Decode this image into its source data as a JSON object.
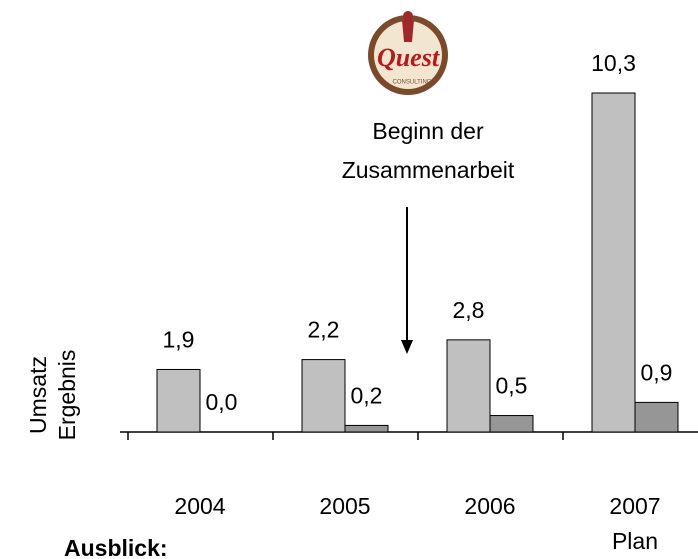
{
  "chart_data": {
    "type": "bar",
    "categories": [
      "2004",
      "2005",
      "2006",
      "2007 Plan"
    ],
    "series": [
      {
        "name": "Umsatz",
        "color": "#c0c0c0",
        "values": [
          1.9,
          2.2,
          2.8,
          10.3
        ],
        "value_labels": [
          "1,9",
          "2,2",
          "2,8",
          "10,3"
        ]
      },
      {
        "name": "Ergebnis",
        "color": "#969696",
        "values": [
          0.0,
          0.2,
          0.5,
          0.9
        ],
        "value_labels": [
          "0,0",
          "0,2",
          "0,5",
          "0,9"
        ]
      }
    ],
    "ylim": [
      0,
      10.3
    ],
    "annotation": "Beginn der Zusammenarbeit",
    "logo": {
      "name": "Quest",
      "subtitle": "CONSULTING"
    },
    "footer": "Ausblick:"
  }
}
